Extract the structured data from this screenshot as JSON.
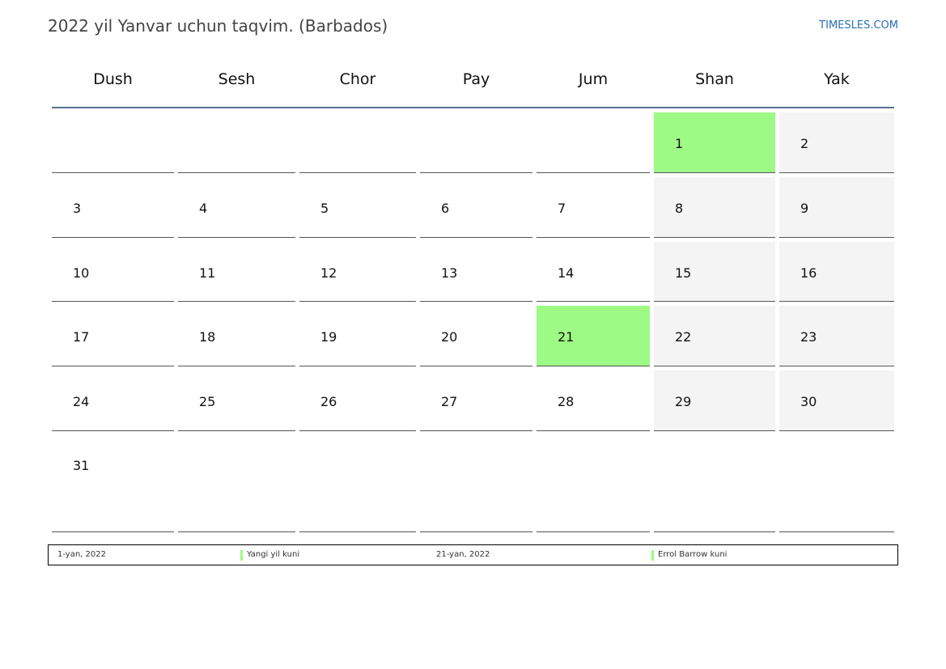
{
  "header": {
    "title": "2022 yil Yanvar uchun taqvim. (Barbados)",
    "site": "TIMESLES.COM"
  },
  "weekdays": [
    "Dush",
    "Sesh",
    "Chor",
    "Pay",
    "Jum",
    "Shan",
    "Yak"
  ],
  "weeks": [
    [
      "",
      "",
      "",
      "",
      "",
      "1",
      "2"
    ],
    [
      "3",
      "4",
      "5",
      "6",
      "7",
      "8",
      "9"
    ],
    [
      "10",
      "11",
      "12",
      "13",
      "14",
      "15",
      "16"
    ],
    [
      "17",
      "18",
      "19",
      "20",
      "21",
      "22",
      "23"
    ],
    [
      "24",
      "25",
      "26",
      "27",
      "28",
      "29",
      "30"
    ],
    [
      "31",
      "",
      "",
      "",
      "",
      "",
      ""
    ]
  ],
  "holiday_days": [
    "1",
    "21"
  ],
  "legend": [
    {
      "date": "1-yan, 2022",
      "name": "Yangi yil kuni"
    },
    {
      "date": "21-yan, 2022",
      "name": "Errol Barrow kuni"
    }
  ],
  "colors": {
    "holiday": "#9dfa85",
    "weekend": "#f4f4f4",
    "header_rule": "#5a7090",
    "link": "#2a6fb0"
  }
}
